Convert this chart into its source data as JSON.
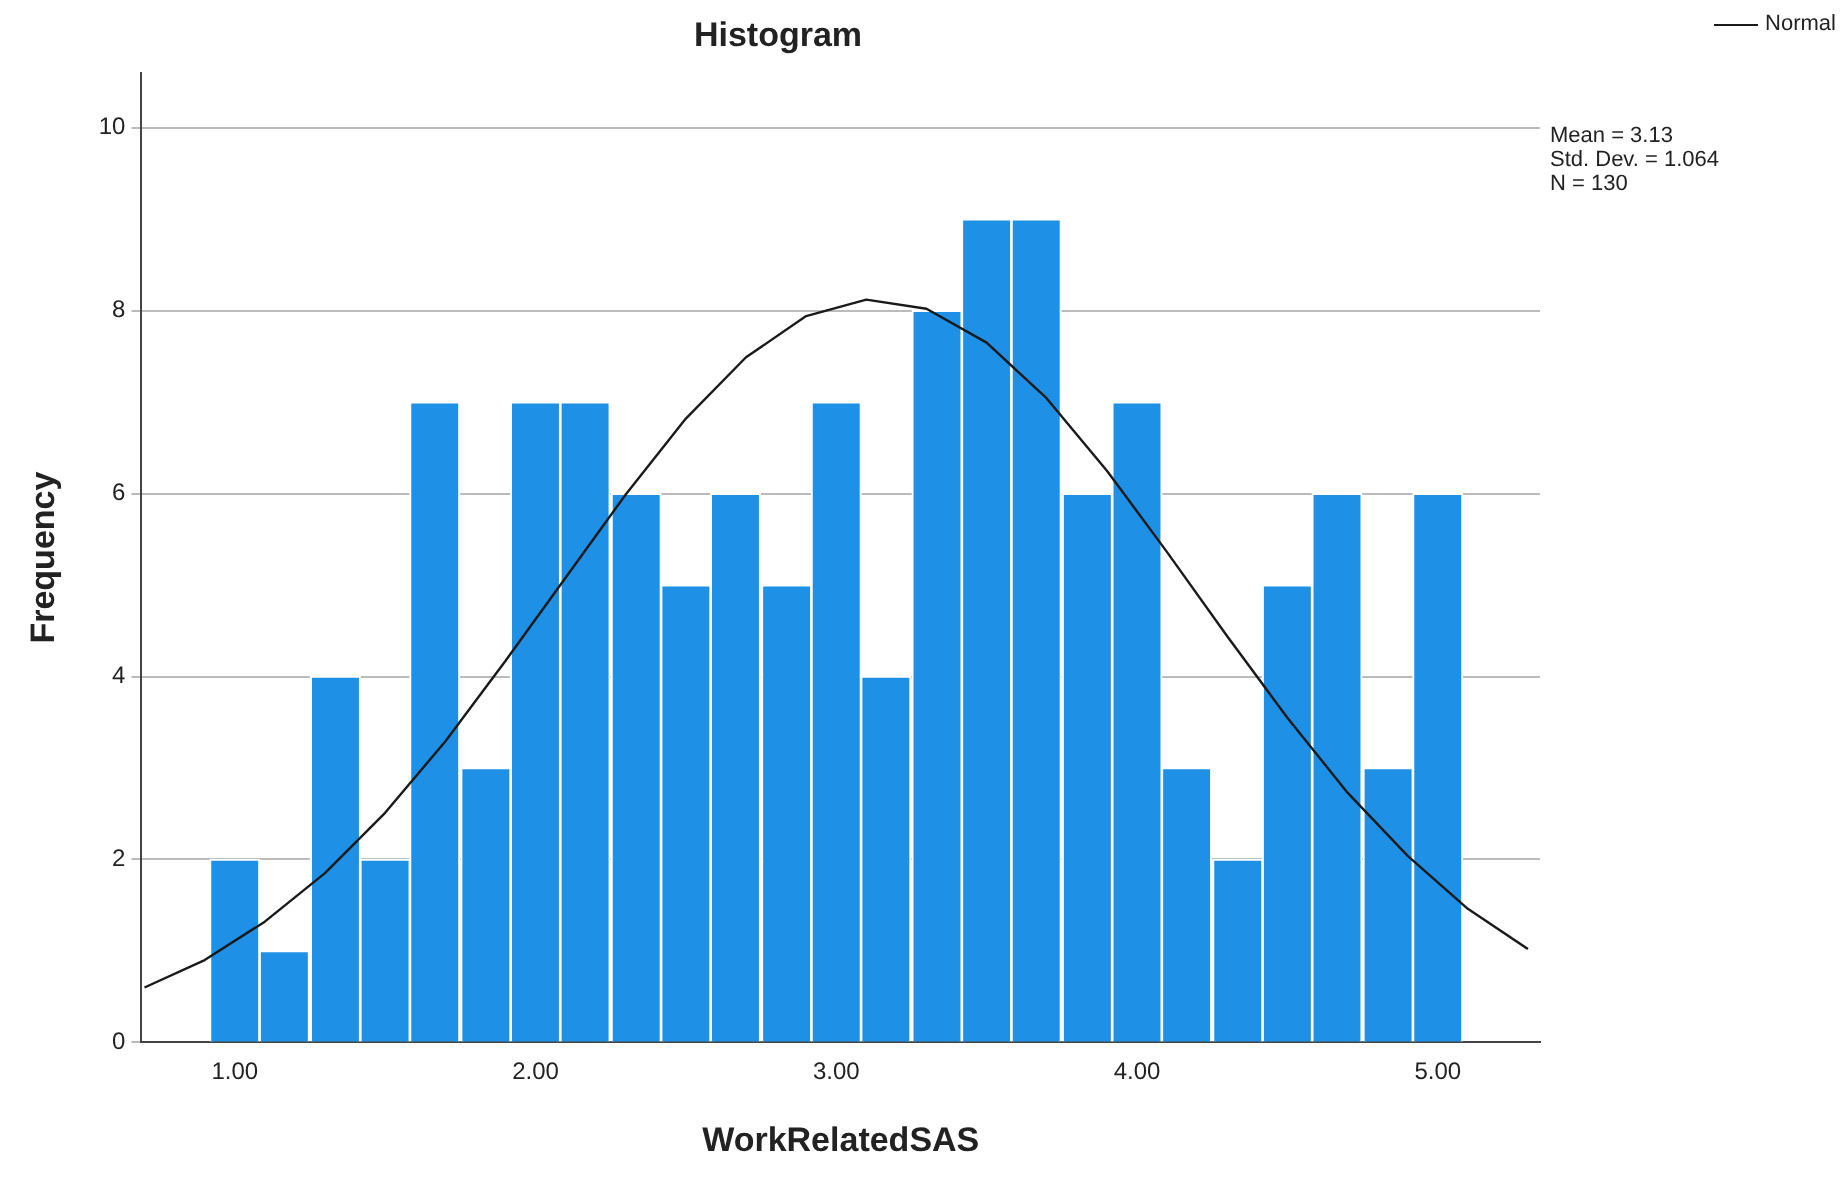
{
  "chart_data": {
    "type": "histogram",
    "title": "Histogram",
    "xlabel": "WorkRelatedSAS",
    "ylabel": "Frequency",
    "bins": [
      0.92,
      1.08,
      1.25,
      1.42,
      1.58,
      1.75,
      1.92,
      2.08,
      2.25,
      2.42,
      2.58,
      2.75,
      2.92,
      3.08,
      3.25,
      3.42,
      3.58,
      3.75,
      3.92,
      4.08,
      4.25,
      4.42,
      4.58,
      4.75,
      4.92,
      5.08
    ],
    "values": [
      2,
      1,
      4,
      2,
      7,
      3,
      7,
      7,
      6,
      5,
      6,
      5,
      7,
      4,
      8,
      9,
      9,
      6,
      7,
      3,
      2,
      5,
      6,
      3,
      6
    ],
    "color": "#1e90e6",
    "series": [
      {
        "type": "line",
        "name": "Normal",
        "color": "#1a1a1a",
        "x": [
          0.7,
          0.9,
          1.1,
          1.3,
          1.5,
          1.7,
          1.9,
          2.1,
          2.3,
          2.5,
          2.7,
          2.9,
          3.1,
          3.3,
          3.5,
          3.7,
          3.9,
          4.1,
          4.3,
          4.5,
          4.7,
          4.9,
          5.1,
          5.3
        ],
        "values": [
          0.6,
          0.9,
          1.32,
          1.85,
          2.51,
          3.29,
          4.17,
          5.08,
          5.99,
          6.82,
          7.49,
          7.94,
          8.12,
          8.02,
          7.65,
          7.04,
          6.25,
          5.36,
          4.44,
          3.55,
          2.73,
          2.04,
          1.46,
          1.02
        ]
      }
    ],
    "xlim": [
      0.69,
      5.34
    ],
    "xticks": [
      {
        "value": 1,
        "label": "1.00"
      },
      {
        "value": 2,
        "label": "2.00"
      },
      {
        "value": 3,
        "label": "3.00"
      },
      {
        "value": 4,
        "label": "4.00"
      },
      {
        "value": 5,
        "label": "5.00"
      }
    ],
    "ylim": [
      0,
      10.6
    ],
    "yticks": [
      0,
      2,
      4,
      6,
      8,
      10
    ],
    "grid": "y",
    "legend": "top right",
    "annotations": [
      "Mean = 3.13",
      "Std. Dev. = 1.064",
      "N = 130"
    ]
  }
}
